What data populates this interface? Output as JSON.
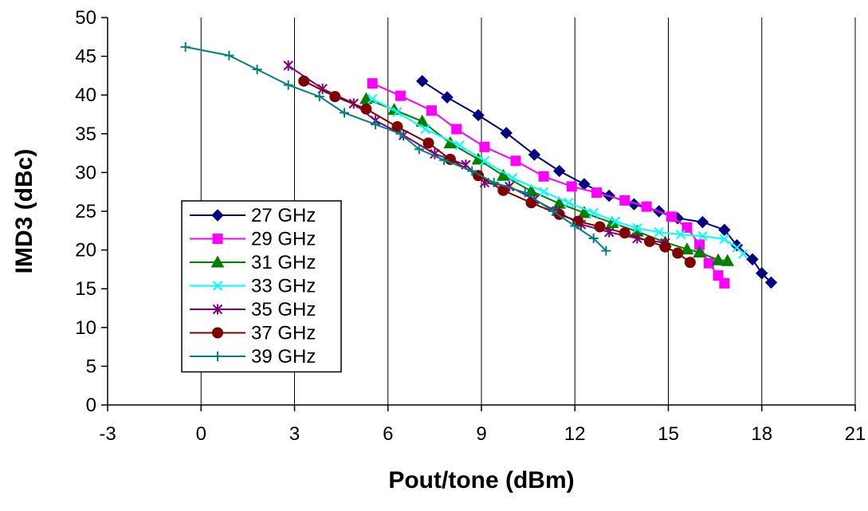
{
  "chart_data": {
    "type": "line",
    "title": "",
    "xlabel": "Pout/tone (dBm)",
    "ylabel": "IMD3 (dBc)",
    "xlim": [
      -3,
      21
    ],
    "ylim": [
      0,
      50
    ],
    "x_ticks": [
      -3,
      0,
      3,
      6,
      9,
      12,
      15,
      18,
      21
    ],
    "y_ticks": [
      0,
      5,
      10,
      15,
      20,
      25,
      30,
      35,
      40,
      45,
      50
    ],
    "grid": {
      "x": true,
      "y": false
    },
    "legend_position": "left",
    "series": [
      {
        "name": "27 GHz",
        "color": "#000080",
        "marker": "diamond",
        "points": [
          [
            7.1,
            41.8
          ],
          [
            7.9,
            39.7
          ],
          [
            8.9,
            37.4
          ],
          [
            9.8,
            35.1
          ],
          [
            10.7,
            32.3
          ],
          [
            11.5,
            30.2
          ],
          [
            12.3,
            28.5
          ],
          [
            13.1,
            27.0
          ],
          [
            13.9,
            25.9
          ],
          [
            14.7,
            25.0
          ],
          [
            15.3,
            24.1
          ],
          [
            16.1,
            23.6
          ],
          [
            16.8,
            22.6
          ],
          [
            17.2,
            20.6
          ],
          [
            17.7,
            18.8
          ],
          [
            18.0,
            17.0
          ],
          [
            18.3,
            15.8
          ]
        ]
      },
      {
        "name": "29 GHz",
        "color": "#FF00FF",
        "marker": "square",
        "points": [
          [
            5.5,
            41.5
          ],
          [
            6.4,
            39.9
          ],
          [
            7.4,
            38.0
          ],
          [
            8.2,
            35.6
          ],
          [
            9.1,
            33.3
          ],
          [
            10.1,
            31.5
          ],
          [
            11.0,
            29.5
          ],
          [
            11.9,
            28.2
          ],
          [
            12.7,
            27.4
          ],
          [
            13.6,
            26.4
          ],
          [
            14.3,
            25.6
          ],
          [
            15.1,
            24.3
          ],
          [
            15.6,
            22.9
          ],
          [
            16.0,
            20.7
          ],
          [
            16.3,
            18.3
          ],
          [
            16.6,
            16.7
          ],
          [
            16.8,
            15.7
          ]
        ]
      },
      {
        "name": "31 GHz",
        "color": "#008000",
        "marker": "triangle",
        "points": [
          [
            5.3,
            39.5
          ],
          [
            6.2,
            38.1
          ],
          [
            7.1,
            36.6
          ],
          [
            8.0,
            33.8
          ],
          [
            8.9,
            31.7
          ],
          [
            9.7,
            29.6
          ],
          [
            10.6,
            27.6
          ],
          [
            11.5,
            26.0
          ],
          [
            12.3,
            24.8
          ],
          [
            13.2,
            23.5
          ],
          [
            14.0,
            22.4
          ],
          [
            14.9,
            21.0
          ],
          [
            15.6,
            20.1
          ],
          [
            16.0,
            19.7
          ],
          [
            16.6,
            18.7
          ],
          [
            16.9,
            18.6
          ]
        ]
      },
      {
        "name": "33 GHz",
        "color": "#00FFFF",
        "marker": "x",
        "points": [
          [
            5.5,
            39.5
          ],
          [
            6.3,
            37.8
          ],
          [
            7.2,
            35.6
          ],
          [
            8.3,
            33.5
          ],
          [
            9.1,
            31.5
          ],
          [
            10.0,
            29.3
          ],
          [
            11.0,
            27.5
          ],
          [
            11.8,
            26.1
          ],
          [
            12.6,
            24.8
          ],
          [
            13.3,
            23.7
          ],
          [
            14.0,
            22.8
          ],
          [
            14.7,
            22.3
          ],
          [
            15.4,
            22.0
          ],
          [
            16.1,
            21.8
          ],
          [
            16.8,
            21.4
          ],
          [
            17.2,
            20.3
          ],
          [
            17.4,
            19.5
          ]
        ]
      },
      {
        "name": "35 GHz",
        "color": "#800080",
        "marker": "star",
        "points": [
          [
            2.8,
            43.8
          ],
          [
            3.9,
            40.8
          ],
          [
            4.9,
            38.9
          ],
          [
            5.6,
            36.7
          ],
          [
            6.5,
            34.8
          ],
          [
            7.5,
            32.4
          ],
          [
            8.5,
            31.0
          ],
          [
            9.1,
            28.7
          ],
          [
            9.9,
            28.2
          ],
          [
            10.7,
            26.5
          ],
          [
            11.4,
            25.0
          ],
          [
            12.2,
            23.3
          ],
          [
            13.1,
            22.3
          ],
          [
            14.0,
            21.5
          ],
          [
            14.9,
            20.9
          ]
        ]
      },
      {
        "name": "37 GHz",
        "color": "#800000",
        "marker": "circle",
        "points": [
          [
            3.3,
            41.8
          ],
          [
            4.3,
            39.8
          ],
          [
            5.3,
            38.2
          ],
          [
            6.3,
            35.9
          ],
          [
            7.3,
            33.8
          ],
          [
            8.0,
            31.7
          ],
          [
            8.9,
            29.6
          ],
          [
            9.7,
            27.7
          ],
          [
            10.6,
            26.1
          ],
          [
            11.5,
            24.6
          ],
          [
            12.1,
            23.7
          ],
          [
            12.8,
            23.0
          ],
          [
            13.6,
            22.2
          ],
          [
            14.4,
            21.1
          ],
          [
            14.9,
            20.4
          ],
          [
            15.3,
            19.6
          ],
          [
            15.7,
            18.4
          ]
        ]
      },
      {
        "name": "39 GHz",
        "color": "#008080",
        "marker": "plus",
        "points": [
          [
            -0.5,
            46.2
          ],
          [
            0.9,
            45.1
          ],
          [
            1.8,
            43.3
          ],
          [
            2.8,
            41.3
          ],
          [
            3.8,
            39.8
          ],
          [
            4.6,
            37.7
          ],
          [
            5.6,
            36.2
          ],
          [
            6.4,
            35.0
          ],
          [
            7.0,
            33.0
          ],
          [
            7.8,
            31.6
          ],
          [
            8.7,
            30.2
          ],
          [
            9.4,
            28.7
          ],
          [
            10.4,
            27.4
          ],
          [
            11.3,
            25.0
          ],
          [
            12.0,
            23.1
          ],
          [
            12.6,
            21.5
          ],
          [
            13.0,
            19.9
          ]
        ]
      }
    ]
  }
}
